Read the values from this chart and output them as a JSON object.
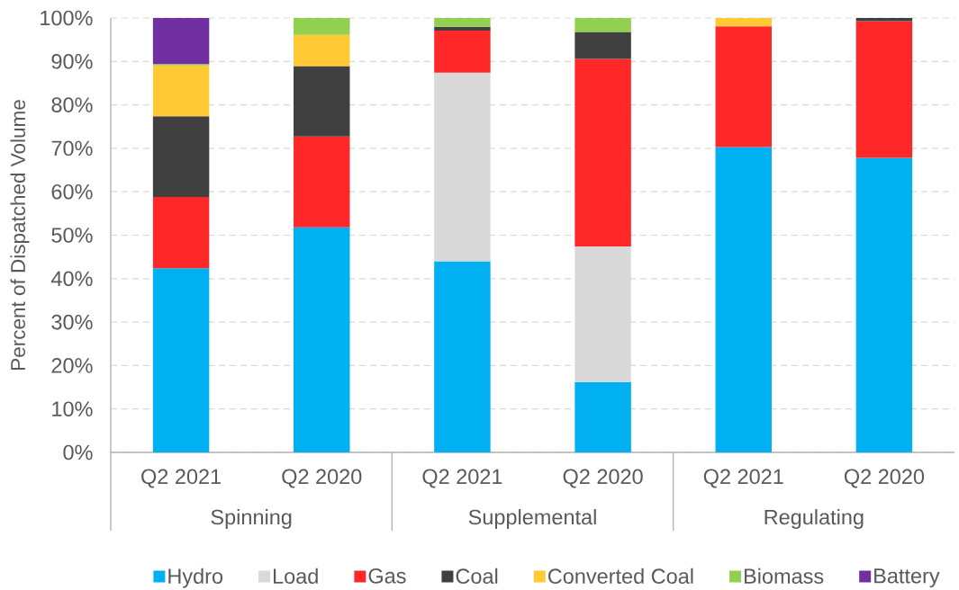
{
  "chart_data": {
    "type": "bar",
    "stacked": true,
    "categories": [
      "Q2 2021",
      "Q2 2020",
      "Q2 2021",
      "Q2 2020",
      "Q2 2021",
      "Q2 2020"
    ],
    "annotations": [
      "Spinning",
      "Supplemental",
      "Regulating"
    ],
    "ylabel": "Percent of Dispatched Volume",
    "ylim": [
      0,
      100
    ],
    "yticks": [
      {
        "value": 0,
        "label": "0%"
      },
      {
        "value": 10,
        "label": "10%"
      },
      {
        "value": 20,
        "label": "20%"
      },
      {
        "value": 30,
        "label": "30%"
      },
      {
        "value": 40,
        "label": "40%"
      },
      {
        "value": 50,
        "label": "50%"
      },
      {
        "value": 60,
        "label": "60%"
      },
      {
        "value": 70,
        "label": "70%"
      },
      {
        "value": 80,
        "label": "80%"
      },
      {
        "value": 90,
        "label": "90%"
      },
      {
        "value": 100,
        "label": "100%"
      }
    ],
    "grid": "y",
    "legend": "bottom",
    "series": [
      {
        "name": "Hydro",
        "color": "#00b0f0",
        "values": [
          42.4,
          51.8,
          44.0,
          16.2,
          70.3,
          67.8
        ]
      },
      {
        "name": "Load",
        "color": "#d9d9d9",
        "values": [
          null,
          null,
          43.4,
          31.2,
          null,
          null
        ]
      },
      {
        "name": "Gas",
        "color": "#ff2828",
        "values": [
          16.4,
          20.9,
          9.7,
          43.2,
          27.8,
          31.5
        ]
      },
      {
        "name": "Coal",
        "color": "#404040",
        "values": [
          18.6,
          16.2,
          0.9,
          6.2,
          null,
          0.7
        ]
      },
      {
        "name": "Converted Coal",
        "color": "#ffca33",
        "values": [
          11.7,
          7.2,
          null,
          null,
          1.9,
          null
        ]
      },
      {
        "name": "Biomass",
        "color": "#92d050",
        "values": [
          0.3,
          3.9,
          2.0,
          3.2,
          null,
          null
        ]
      },
      {
        "name": "Battery",
        "color": "#7030a0",
        "values": [
          10.6,
          null,
          null,
          null,
          null,
          null
        ]
      }
    ]
  }
}
